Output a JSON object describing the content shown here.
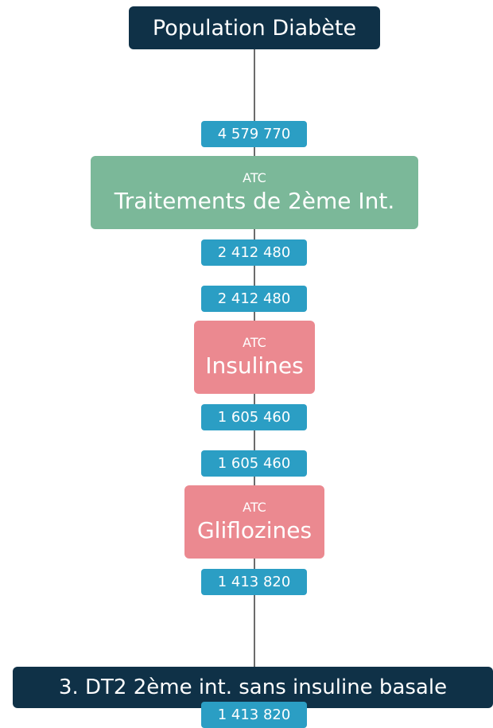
{
  "root": {
    "label": "Population Diabète"
  },
  "steps": [
    {
      "category": "ATC",
      "label": "Traitements de 2ème Int.",
      "count_in": "4 579 770",
      "count_out": "2 412 480"
    },
    {
      "category": "ATC",
      "label": "Insulines",
      "count_in": "2 412 480",
      "count_out": "1 605 460"
    },
    {
      "category": "ATC",
      "label": "Gliflozines",
      "count_in": "1 605 460",
      "count_out": "1 413 820"
    }
  ],
  "result": {
    "label": "3. DT2 2ème int. sans insuline basale",
    "count": "1 413 820"
  }
}
